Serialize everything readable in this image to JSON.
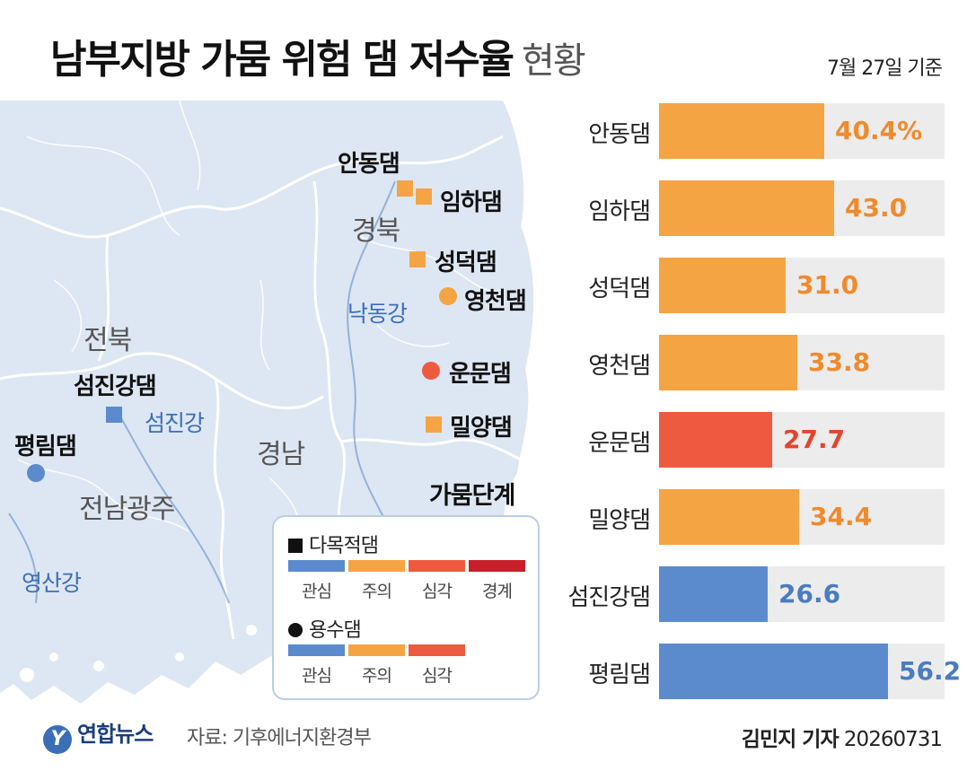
{
  "title": "남부지방 가뭄 위험 댐 저수율",
  "title_suffix": "현황",
  "date_note": "7월 27일 기준",
  "colors": {
    "gwansim": "#5b8bcd",
    "jueui": "#f5a444",
    "simgak": "#ee5a40",
    "gyeonggye": "#c91f2a",
    "track": "#ececec",
    "map_land": "#dde7f3",
    "map_line": "#ffffff",
    "river": "#3d6db8"
  },
  "map": {
    "regions": {
      "gyeongbuk": "경북",
      "jeonbuk": "전북",
      "gyeongnam": "경남",
      "jeonnam_gwangju": "전남광주"
    },
    "rivers": {
      "nakdong": "낙동강",
      "seomjin": "섬진강",
      "yeongsan": "영산강"
    },
    "dams": [
      {
        "name": "안동댐",
        "kind": "square",
        "color": "#f5a444"
      },
      {
        "name": "임하댐",
        "kind": "square",
        "color": "#f5a444"
      },
      {
        "name": "성덕댐",
        "kind": "square",
        "color": "#f5a444"
      },
      {
        "name": "영천댐",
        "kind": "circle",
        "color": "#f5a444"
      },
      {
        "name": "운문댐",
        "kind": "circle",
        "color": "#ee5a40"
      },
      {
        "name": "밀양댐",
        "kind": "square",
        "color": "#f5a444"
      },
      {
        "name": "섬진강댐",
        "kind": "square",
        "color": "#5b8bcd"
      },
      {
        "name": "평림댐",
        "kind": "circle",
        "color": "#5b8bcd"
      }
    ]
  },
  "legend": {
    "title": "가뭄단계",
    "multipurpose": {
      "label": "다목적댐",
      "stages": [
        "관심",
        "주의",
        "심각",
        "경계"
      ]
    },
    "water_supply": {
      "label": "용수댐",
      "stages": [
        "관심",
        "주의",
        "심각"
      ]
    }
  },
  "chart_data": {
    "type": "bar",
    "orientation": "horizontal",
    "xlim": [
      0,
      70
    ],
    "categories": [
      "안동댐",
      "임하댐",
      "성덕댐",
      "영천댐",
      "운문댐",
      "밀양댐",
      "섬진강댐",
      "평림댐"
    ],
    "values": [
      40.4,
      43.0,
      31.0,
      33.8,
      27.7,
      34.4,
      26.6,
      56.2
    ],
    "value_labels": [
      "40.4%",
      "43.0",
      "31.0",
      "33.8",
      "27.7",
      "34.4",
      "26.6",
      "56.2"
    ],
    "stage": [
      "주의",
      "주의",
      "주의",
      "주의",
      "심각",
      "주의",
      "관심",
      "관심"
    ],
    "bar_colors": [
      "#f5a444",
      "#f5a444",
      "#f5a444",
      "#f5a444",
      "#ee5a40",
      "#f5a444",
      "#5b8bcd",
      "#5b8bcd"
    ],
    "value_colors": [
      "#f08a2c",
      "#f08a2c",
      "#f08a2c",
      "#f08a2c",
      "#e2452d",
      "#f08a2c",
      "#4a7cc0",
      "#4a7cc0"
    ]
  },
  "footer": {
    "logo_mark": "Y",
    "logo_text": "연합뉴스",
    "source": "자료: 기후에너지환경부",
    "reporter": "김민지 기자",
    "date_code": "20260731"
  }
}
